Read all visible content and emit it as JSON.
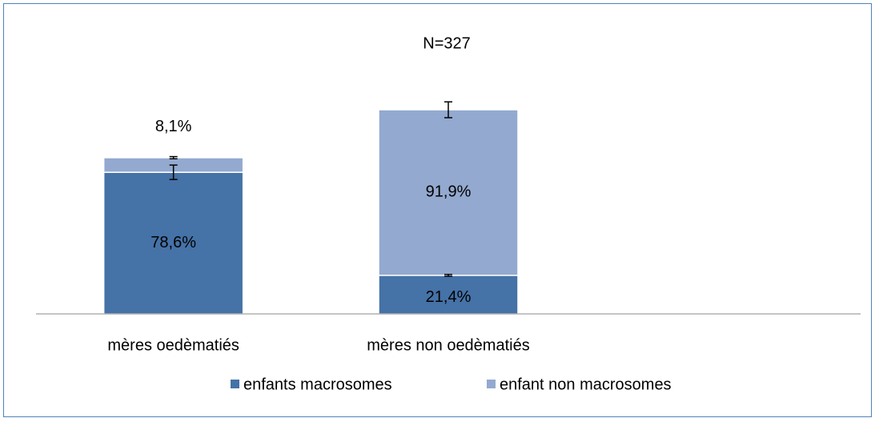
{
  "chart_data": {
    "type": "stacked_bar",
    "title": "N=327",
    "categories": [
      "mères oedèmatiés",
      "mères non oedèmatiés"
    ],
    "series": [
      {
        "name": "enfants macrosomes",
        "color": "#4572a7",
        "values": [
          78.6,
          21.4
        ],
        "value_labels": [
          "78,6%",
          "21,4%"
        ],
        "errors": [
          4,
          0.5
        ]
      },
      {
        "name": "enfant non macrosomes",
        "color": "#93a9cf",
        "values": [
          8.1,
          91.9
        ],
        "value_labels": [
          "8,1%",
          "91,9%"
        ],
        "errors": [
          0.6,
          4.4
        ]
      }
    ],
    "legend": "bottom"
  }
}
